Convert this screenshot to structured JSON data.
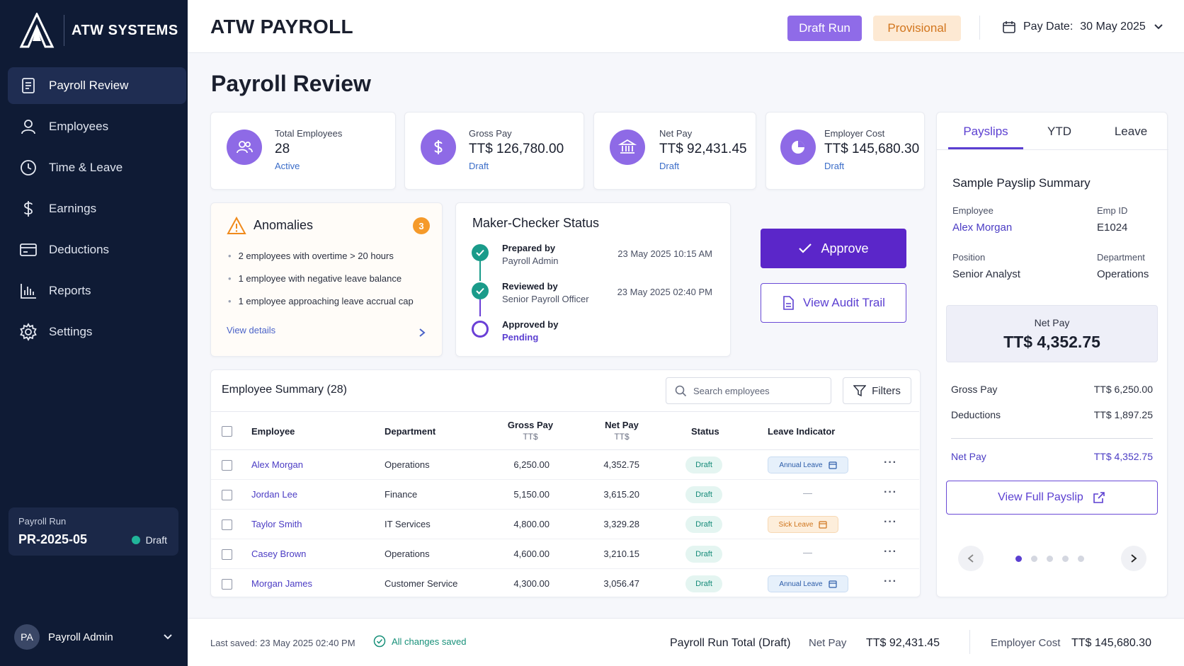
{
  "brand": {
    "name": "ATW SYSTEMS"
  },
  "sidebar": {
    "items": [
      {
        "label": "Payroll Review",
        "icon": "document-icon",
        "active": true
      },
      {
        "label": "Employees",
        "icon": "user-icon"
      },
      {
        "label": "Time & Leave",
        "icon": "clock-icon"
      },
      {
        "label": "Earnings",
        "icon": "dollar-icon"
      },
      {
        "label": "Deductions",
        "icon": "card-icon"
      },
      {
        "label": "Reports",
        "icon": "bar-chart-icon"
      },
      {
        "label": "Settings",
        "icon": "gear-icon"
      }
    ],
    "run": {
      "label": "Payroll Run",
      "id": "PR-2025-05",
      "status": "Draft"
    },
    "user": {
      "initials": "PA",
      "name": "Payroll Admin"
    }
  },
  "header": {
    "title": "ATW PAYROLL",
    "badge_draft": "Draft Run",
    "badge_provisional": "Provisional",
    "pay_date_label": "Pay Date:",
    "pay_date_value": "30 May 2025"
  },
  "page": {
    "title": "Payroll Review"
  },
  "stats": [
    {
      "label": "Total Employees",
      "value": "28",
      "sub": "Active"
    },
    {
      "label": "Gross Pay",
      "value": "TT$ 126,780.00",
      "sub": "Draft"
    },
    {
      "label": "Net Pay",
      "value": "TT$ 92,431.45",
      "sub": "Draft"
    },
    {
      "label": "Employer Cost",
      "value": "TT$ 145,680.30",
      "sub": "Draft"
    }
  ],
  "anomalies": {
    "title": "Anomalies",
    "count": "3",
    "items": [
      "2 employees with overtime > 20 hours",
      "1 employee with negative leave balance",
      "1 employee approaching leave accrual cap"
    ],
    "link": "View details"
  },
  "maker_checker": {
    "title": "Maker-Checker Status",
    "steps": [
      {
        "label": "Prepared by",
        "who": "Payroll Admin",
        "time": "23 May 2025 10:15 AM"
      },
      {
        "label": "Reviewed by",
        "who": "Senior Payroll Officer",
        "time": "23 May 2025 02:40 PM"
      },
      {
        "label": "Approved by",
        "who": "Pending",
        "time": ""
      }
    ]
  },
  "actions": {
    "approve": "Approve",
    "audit": "View Audit Trail"
  },
  "table": {
    "title": "Employee Summary (28)",
    "search_placeholder": "Search employees",
    "filters": "Filters",
    "headers": {
      "employee": "Employee",
      "department": "Department",
      "gross": "Gross Pay",
      "gross_unit": "TT$",
      "net": "Net Pay",
      "net_unit": "TT$",
      "status": "Status",
      "leave": "Leave Indicator"
    },
    "rows": [
      {
        "name": "Alex Morgan",
        "dept": "Operations",
        "gross": "6,250.00",
        "net": "4,352.75",
        "status": "Draft",
        "leave": "Annual Leave",
        "leave_type": "annual"
      },
      {
        "name": "Jordan Lee",
        "dept": "Finance",
        "gross": "5,150.00",
        "net": "3,615.20",
        "status": "Draft",
        "leave": "—",
        "leave_type": "none"
      },
      {
        "name": "Taylor Smith",
        "dept": "IT Services",
        "gross": "4,800.00",
        "net": "3,329.28",
        "status": "Draft",
        "leave": "Sick Leave",
        "leave_type": "sick"
      },
      {
        "name": "Casey Brown",
        "dept": "Operations",
        "gross": "4,600.00",
        "net": "3,210.15",
        "status": "Draft",
        "leave": "—",
        "leave_type": "none"
      },
      {
        "name": "Morgan James",
        "dept": "Customer Service",
        "gross": "4,300.00",
        "net": "3,056.47",
        "status": "Draft",
        "leave": "Annual Leave",
        "leave_type": "annual"
      }
    ]
  },
  "payslip": {
    "tabs": [
      "Payslips",
      "YTD",
      "Leave"
    ],
    "title": "Sample Payslip Summary",
    "employee_label": "Employee",
    "employee": "Alex Morgan",
    "empid_label": "Emp ID",
    "empid": "E1024",
    "position_label": "Position",
    "position": "Senior Analyst",
    "dept_label": "Department",
    "dept": "Operations",
    "net_label": "Net Pay",
    "net_value": "TT$ 4,352.75",
    "gross_label": "Gross Pay",
    "gross_value": "TT$ 6,250.00",
    "deductions_label": "Deductions",
    "deductions_value": "TT$ 1,897.25",
    "net_row_label": "Net Pay",
    "net_row_value": "TT$ 4,352.75",
    "full_button": "View Full Payslip",
    "page_count": 5,
    "page_active": 1
  },
  "footer": {
    "last_saved_label": "Last saved:",
    "last_saved": "23 May 2025 02:40 PM",
    "status": "All changes saved",
    "total_label": "Payroll Run Total (Draft)",
    "net_label": "Net Pay",
    "net_value": "TT$ 92,431.45",
    "cost_label": "Employer Cost",
    "cost_value": "TT$ 145,680.30"
  },
  "colors": {
    "accent": "#5b26c9",
    "sidebar": "#0f1b35",
    "success": "#1a9b8a",
    "warning": "#f59a2a"
  }
}
